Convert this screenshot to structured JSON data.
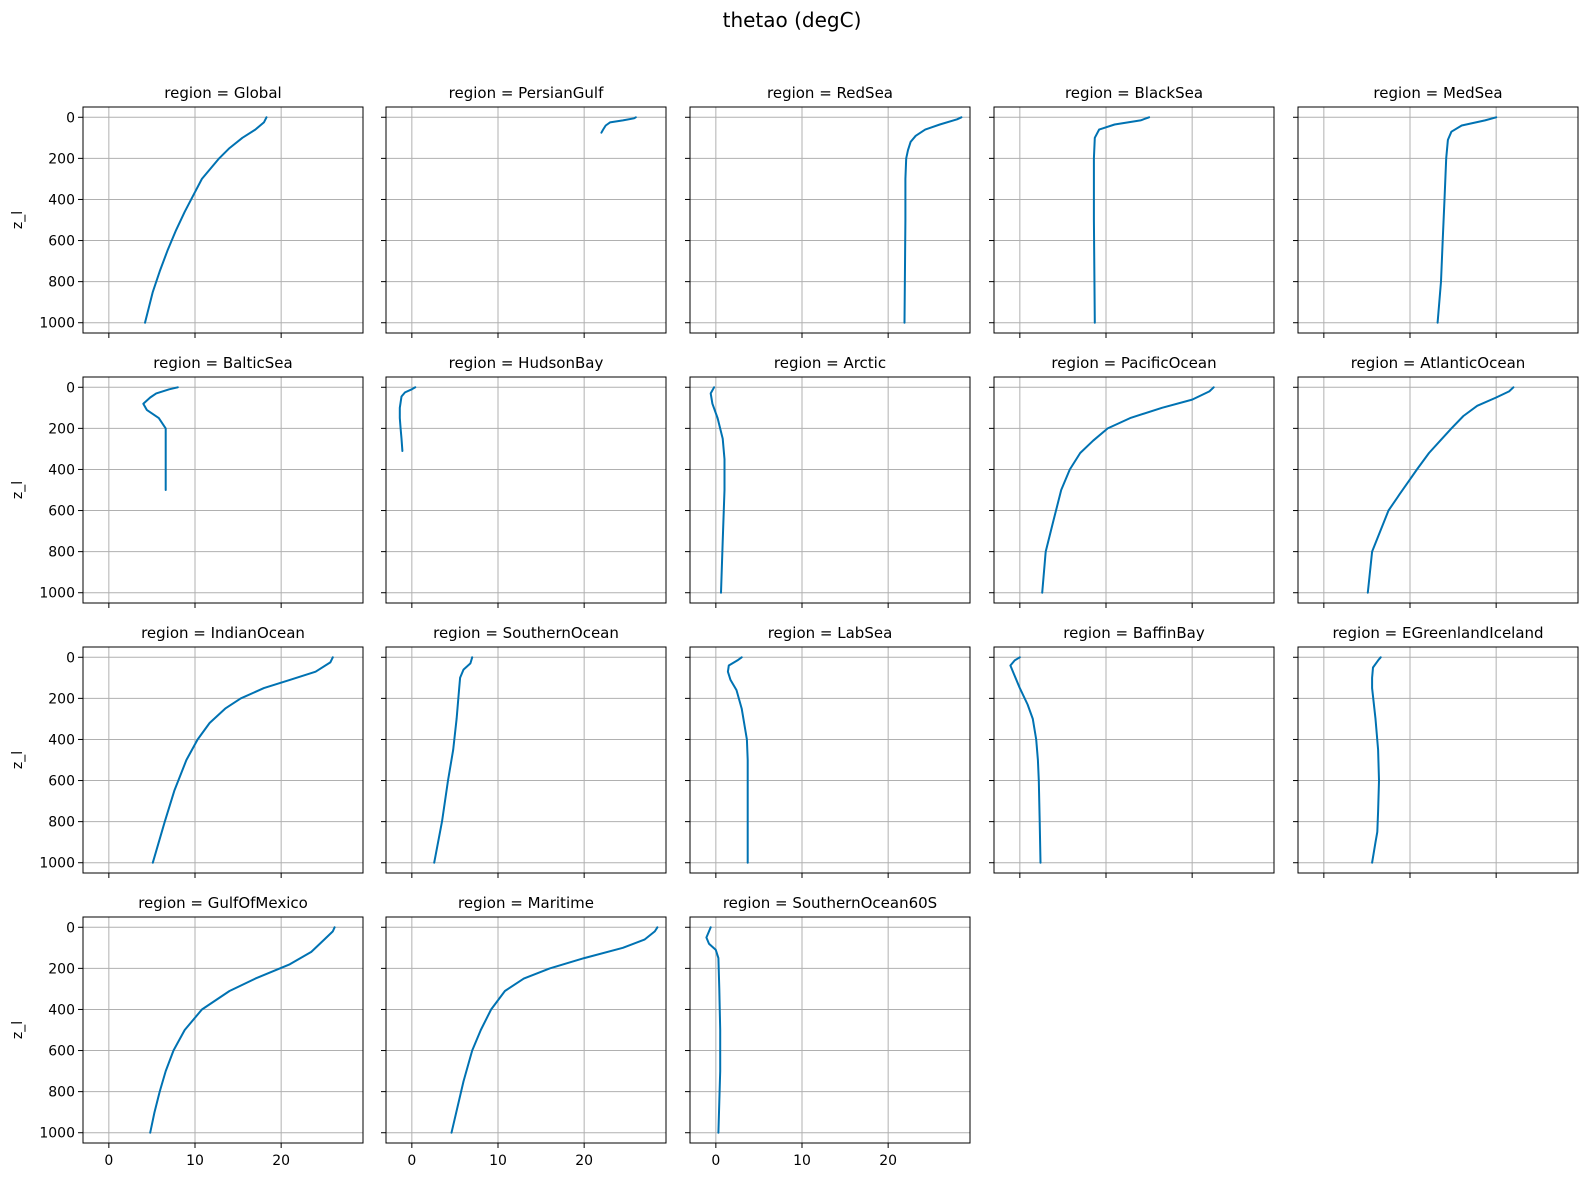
{
  "chart_data": {
    "type": "line",
    "title": "thetao (degC)",
    "ylabel": "z_l",
    "xlabel": "",
    "ylim": [
      1050,
      -50
    ],
    "xlim": [
      -3,
      29.5
    ],
    "xticks": [
      0,
      10,
      20
    ],
    "yticks": [
      0,
      200,
      400,
      600,
      800,
      1000
    ],
    "grid": true,
    "line_color": "#0072b2",
    "layout": "facet grid, 4 rows x 5 columns, shared axes",
    "panels": [
      {
        "title": "region = Global",
        "series": [
          {
            "x": [
              18.3,
              18.0,
              17.0,
              15.5,
              14.0,
              12.8,
              11.8,
              10.8,
              9.8,
              8.8,
              7.8,
              6.8,
              5.9,
              5.1,
              4.2
            ],
            "y": [
              0,
              25,
              60,
              100,
              150,
              200,
              250,
              300,
              380,
              460,
              550,
              650,
              750,
              850,
              1000
            ]
          }
        ]
      },
      {
        "title": "region = PersianGulf",
        "series": [
          {
            "x": [
              26.0,
              25.8,
              24.5,
              23.0,
              22.5,
              22.2,
              22.0
            ],
            "y": [
              0,
              5,
              15,
              25,
              40,
              60,
              75
            ]
          }
        ]
      },
      {
        "title": "region = RedSea",
        "series": [
          {
            "x": [
              28.5,
              28.0,
              26.0,
              24.3,
              23.2,
              22.6,
              22.3,
              22.1,
              22.0,
              22.0,
              21.9
            ],
            "y": [
              0,
              10,
              35,
              60,
              90,
              120,
              160,
              200,
              300,
              500,
              1000
            ]
          }
        ]
      },
      {
        "title": "region = BlackSea",
        "series": [
          {
            "x": [
              15.0,
              14.0,
              11.0,
              9.2,
              8.7,
              8.6,
              8.6,
              8.7
            ],
            "y": [
              0,
              15,
              35,
              60,
              100,
              200,
              500,
              1000
            ]
          }
        ]
      },
      {
        "title": "region = MedSea",
        "series": [
          {
            "x": [
              20.0,
              18.7,
              16.0,
              14.8,
              14.4,
              14.2,
              14.0,
              13.8,
              13.6,
              13.2
            ],
            "y": [
              0,
              15,
              40,
              70,
              110,
              200,
              400,
              600,
              800,
              1000
            ]
          }
        ]
      },
      {
        "title": "region = BalticSea",
        "series": [
          {
            "x": [
              8.0,
              7.0,
              5.5,
              4.8,
              4.0,
              4.4,
              5.8,
              6.6,
              6.6,
              6.6
            ],
            "y": [
              0,
              10,
              30,
              50,
              80,
              110,
              150,
              200,
              350,
              500
            ]
          }
        ]
      },
      {
        "title": "region = HudsonBay",
        "series": [
          {
            "x": [
              0.4,
              0.0,
              -0.8,
              -1.2,
              -1.4,
              -1.4,
              -1.3,
              -1.2,
              -1.1
            ],
            "y": [
              0,
              10,
              25,
              45,
              100,
              150,
              200,
              250,
              310
            ]
          }
        ]
      },
      {
        "title": "region = Arctic",
        "series": [
          {
            "x": [
              -0.2,
              -0.6,
              -0.4,
              0.2,
              0.8,
              1.0,
              1.0,
              0.8,
              0.6
            ],
            "y": [
              0,
              30,
              80,
              150,
              250,
              350,
              500,
              750,
              1000
            ]
          }
        ]
      },
      {
        "title": "region = PacificOcean",
        "series": [
          {
            "x": [
              22.5,
              22.0,
              20.0,
              16.5,
              12.8,
              10.2,
              8.5,
              7.0,
              5.8,
              4.8,
              3.9,
              3.0,
              2.6
            ],
            "y": [
              0,
              20,
              60,
              100,
              150,
              200,
              260,
              320,
              400,
              500,
              650,
              800,
              1000
            ]
          }
        ]
      },
      {
        "title": "region = AtlanticOcean",
        "series": [
          {
            "x": [
              22.0,
              21.5,
              20.0,
              17.8,
              16.2,
              14.8,
              13.5,
              12.2,
              10.8,
              9.8,
              8.8,
              7.5,
              5.6,
              5.1
            ],
            "y": [
              0,
              20,
              50,
              90,
              140,
              200,
              260,
              320,
              400,
              460,
              520,
              600,
              800,
              1000
            ]
          }
        ]
      },
      {
        "title": "region = IndianOcean",
        "series": [
          {
            "x": [
              26.0,
              25.7,
              24.0,
              21.0,
              18.0,
              15.3,
              13.5,
              11.7,
              10.3,
              9.0,
              7.6,
              6.5,
              5.1
            ],
            "y": [
              0,
              25,
              70,
              110,
              150,
              200,
              250,
              320,
              400,
              500,
              650,
              800,
              1000
            ]
          }
        ]
      },
      {
        "title": "region = SouthernOcean",
        "series": [
          {
            "x": [
              7.0,
              6.8,
              6.0,
              5.6,
              5.5,
              5.2,
              4.8,
              4.2,
              3.5,
              2.6
            ],
            "y": [
              0,
              30,
              60,
              100,
              150,
              300,
              450,
              600,
              800,
              1000
            ]
          }
        ]
      },
      {
        "title": "region = LabSea",
        "series": [
          {
            "x": [
              3.0,
              2.5,
              1.5,
              1.4,
              1.7,
              2.4,
              3.0,
              3.6,
              3.7,
              3.7,
              3.7
            ],
            "y": [
              0,
              15,
              40,
              70,
              110,
              160,
              250,
              400,
              500,
              700,
              1000
            ]
          }
        ]
      },
      {
        "title": "region = BaffinBay",
        "series": [
          {
            "x": [
              0.0,
              -0.6,
              -1.1,
              -0.7,
              0.0,
              0.9,
              1.5,
              1.9,
              2.1,
              2.2,
              2.3,
              2.4
            ],
            "y": [
              0,
              15,
              40,
              80,
              150,
              230,
              300,
              400,
              500,
              600,
              800,
              1000
            ]
          }
        ]
      },
      {
        "title": "region = EGreenlandIceland",
        "series": [
          {
            "x": [
              6.6,
              6.3,
              5.7,
              5.6,
              5.6,
              6.0,
              6.3,
              6.4,
              6.3,
              6.2,
              6.0,
              5.6
            ],
            "y": [
              0,
              15,
              50,
              100,
              150,
              300,
              450,
              600,
              750,
              850,
              900,
              1000
            ]
          }
        ]
      },
      {
        "title": "region = GulfOfMexico",
        "series": [
          {
            "x": [
              26.2,
              26.0,
              25.0,
              23.5,
              21.0,
              17.0,
              14.0,
              10.8,
              8.8,
              7.5,
              6.6,
              5.9,
              5.3,
              4.8
            ],
            "y": [
              0,
              20,
              60,
              120,
              180,
              250,
              310,
              400,
              500,
              600,
              700,
              800,
              900,
              1000
            ]
          }
        ]
      },
      {
        "title": "region = Maritime",
        "series": [
          {
            "x": [
              28.5,
              28.2,
              27.0,
              24.5,
              20.0,
              16.0,
              13.0,
              10.8,
              9.2,
              8.0,
              7.0,
              6.0,
              4.6
            ],
            "y": [
              0,
              20,
              60,
              100,
              150,
              200,
              250,
              310,
              400,
              500,
              600,
              750,
              1000
            ]
          }
        ]
      },
      {
        "title": "region = SouthernOcean60S",
        "series": [
          {
            "x": [
              -0.6,
              -0.8,
              -1.1,
              -0.8,
              0.0,
              0.3,
              0.4,
              0.5,
              0.5,
              0.4,
              0.3
            ],
            "y": [
              0,
              20,
              50,
              80,
              110,
              150,
              300,
              500,
              700,
              850,
              1000
            ]
          }
        ]
      }
    ]
  }
}
